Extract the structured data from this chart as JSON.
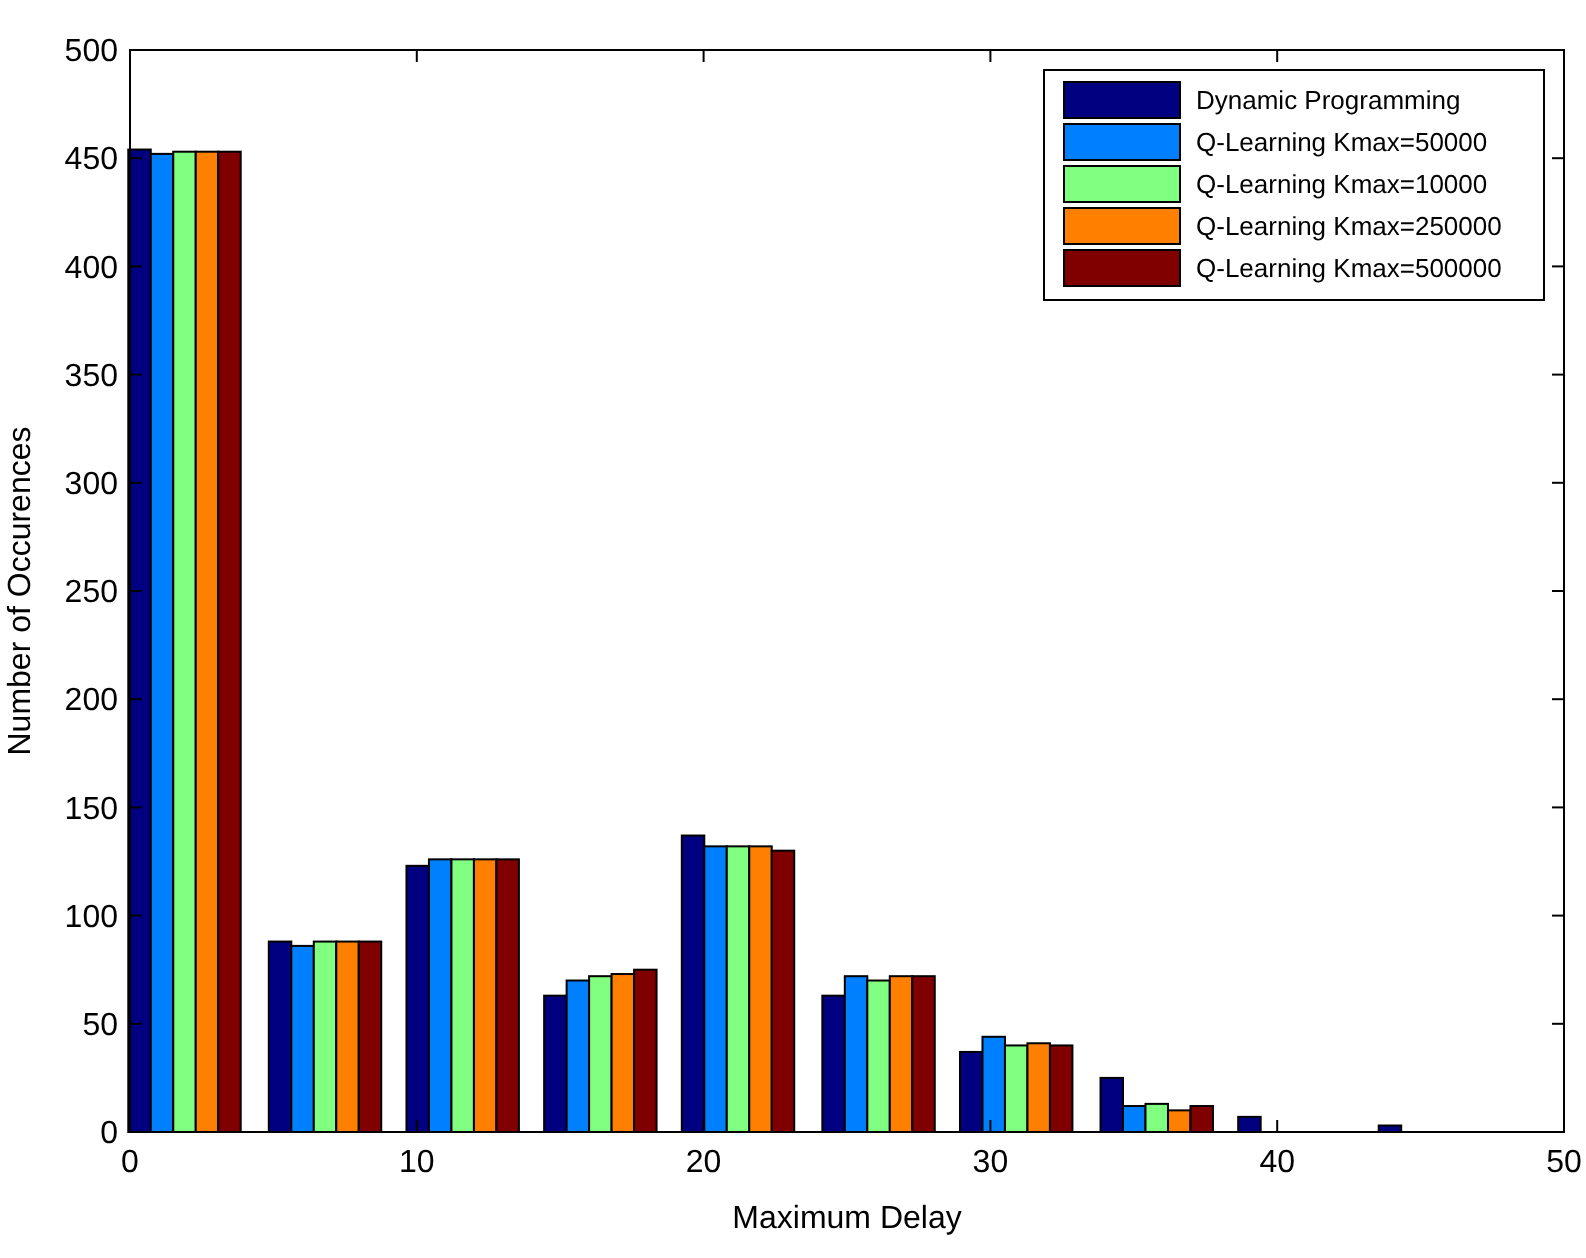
{
  "chart_data": {
    "type": "bar",
    "xlabel": "Maximum Delay",
    "ylabel": "Number of Occurences",
    "x": [
      1.9,
      6.8,
      11.6,
      16.4,
      21.2,
      26.1,
      30.9,
      35.8,
      40.6,
      45.5
    ],
    "series": [
      {
        "name": "Dynamic Programming",
        "color": "#000080",
        "values": [
          454,
          88,
          123,
          63,
          137,
          63,
          37,
          25,
          7,
          3
        ]
      },
      {
        "name": "Q-Learning Kmax=50000",
        "color": "#0080ff",
        "values": [
          452,
          86,
          126,
          70,
          132,
          72,
          44,
          12,
          0,
          0
        ]
      },
      {
        "name": "Q-Learning Kmax=10000",
        "color": "#80ff80",
        "values": [
          453,
          88,
          126,
          72,
          132,
          70,
          40,
          13,
          0,
          0
        ]
      },
      {
        "name": "Q-Learning Kmax=250000",
        "color": "#ff8000",
        "values": [
          453,
          88,
          126,
          73,
          132,
          72,
          41,
          10,
          0,
          0
        ]
      },
      {
        "name": "Q-Learning Kmax=500000",
        "color": "#800000",
        "values": [
          453,
          88,
          126,
          75,
          130,
          72,
          40,
          12,
          0,
          0
        ]
      }
    ],
    "xlim": [
      0,
      50
    ],
    "xticks": [
      0,
      10,
      20,
      30,
      40,
      50
    ],
    "ylim": [
      0,
      500
    ],
    "yticks": [
      0,
      50,
      100,
      150,
      200,
      250,
      300,
      350,
      400,
      450,
      500
    ],
    "grid": false,
    "legend": "top right"
  }
}
